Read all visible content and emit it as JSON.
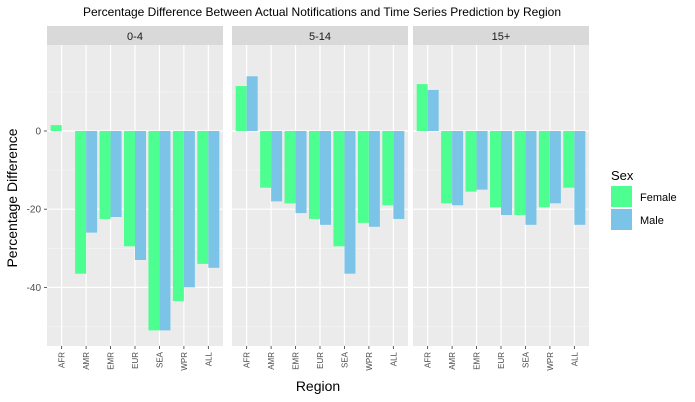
{
  "chart_data": {
    "type": "bar",
    "title": "Percentage Difference Between Actual Notifications and Time Series Prediction by Region",
    "xlabel": "Region",
    "ylabel": "Percentage Difference",
    "ylim": [
      -55,
      22
    ],
    "yticks": [
      0,
      -20,
      -40
    ],
    "categories": [
      "AFR",
      "AMR",
      "EMR",
      "EUR",
      "SEA",
      "WPR",
      "ALL"
    ],
    "legend": {
      "title": "Sex",
      "position": "right"
    },
    "series_colors": {
      "Female": "#4dff91",
      "Male": "#7cc3e8"
    },
    "panels": [
      {
        "label": "0-4",
        "series": [
          {
            "name": "Female",
            "values": [
              1.5,
              -36.5,
              -22.5,
              -29.5,
              -51.0,
              -43.5,
              -34.0
            ]
          },
          {
            "name": "Male",
            "values": [
              null,
              -26.0,
              -22.0,
              -33.0,
              -51.0,
              -40.0,
              -35.0
            ]
          }
        ]
      },
      {
        "label": "5-14",
        "series": [
          {
            "name": "Female",
            "values": [
              11.5,
              -14.5,
              -18.5,
              -22.5,
              -29.5,
              -23.5,
              -19.0
            ]
          },
          {
            "name": "Male",
            "values": [
              14.0,
              -18.0,
              -21.0,
              -24.0,
              -36.5,
              -24.5,
              -22.5
            ]
          }
        ]
      },
      {
        "label": "15+",
        "series": [
          {
            "name": "Female",
            "values": [
              12.0,
              -18.5,
              -15.5,
              -19.5,
              -21.5,
              -19.5,
              -14.5
            ]
          },
          {
            "name": "Male",
            "values": [
              10.5,
              -19.0,
              -15.0,
              -21.5,
              -24.0,
              -18.5,
              -24.0
            ]
          }
        ]
      }
    ]
  }
}
